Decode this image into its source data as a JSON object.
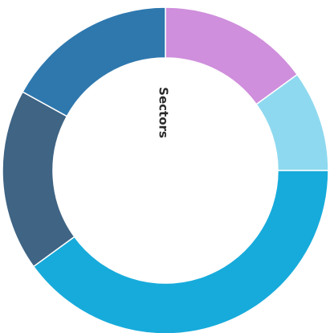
{
  "chart_data": {
    "type": "pie",
    "variant": "donut",
    "center_label": "Sectors",
    "values": [
      15,
      10,
      40,
      18,
      17
    ],
    "colors": [
      "#cf8fdc",
      "#8ed9ef",
      "#17abdb",
      "#3f6484",
      "#2e78ae"
    ],
    "start_angle_deg": 0,
    "direction": "clockwise"
  }
}
